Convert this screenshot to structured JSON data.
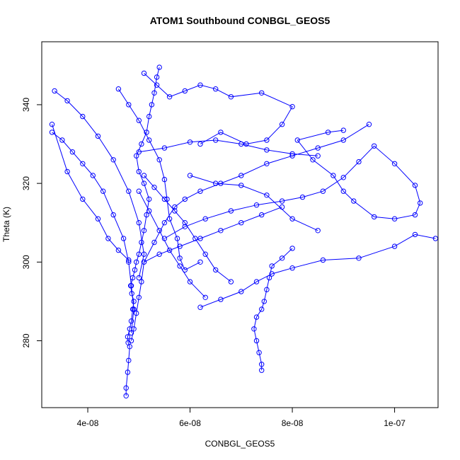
{
  "chart_data": {
    "type": "scatter",
    "title": "ATOM1 Southbound CONBGL_GEOS5",
    "xlabel": "CONBGL_GEOS5",
    "ylabel": "Theta (K)",
    "xlim": [
      3.1e-08,
      1.085e-07
    ],
    "ylim": [
      263,
      356
    ],
    "xticks": [
      4e-08,
      6e-08,
      8e-08,
      1e-07
    ],
    "xtick_labels": [
      "4e-08",
      "6e-08",
      "8e-08",
      "1e-07"
    ],
    "yticks": [
      280,
      300,
      320,
      340
    ],
    "ytick_labels": [
      "280",
      "300",
      "320",
      "340"
    ],
    "grid": false,
    "legend": "none",
    "series_color": "#0000ff",
    "series": [
      {
        "values": [
          [
            4.75e-08,
            266.0
          ],
          [
            4.75e-08,
            268.0
          ],
          [
            4.78e-08,
            272.0
          ],
          [
            4.8e-08,
            275.0
          ],
          [
            4.82e-08,
            278.5
          ],
          [
            4.79e-08,
            279.5
          ],
          [
            4.78e-08,
            281.0
          ],
          [
            4.82e-08,
            283.0
          ],
          [
            4.85e-08,
            285.0
          ],
          [
            4.88e-08,
            288.0
          ],
          [
            4.9e-08,
            290.0
          ],
          [
            4.86e-08,
            292.0
          ],
          [
            4.84e-08,
            294.0
          ],
          [
            4.88e-08,
            296.0
          ],
          [
            4.92e-08,
            298.0
          ],
          [
            4.95e-08,
            300.0
          ],
          [
            5e-08,
            302.0
          ],
          [
            5.05e-08,
            305.0
          ],
          [
            5.1e-08,
            308.0
          ],
          [
            5.15e-08,
            312.0
          ],
          [
            5.2e-08,
            316.0
          ],
          [
            5.1e-08,
            320.0
          ],
          [
            5e-08,
            323.0
          ],
          [
            4.95e-08,
            327.0
          ],
          [
            5.05e-08,
            330.0
          ],
          [
            5.15e-08,
            333.0
          ],
          [
            5.2e-08,
            337.0
          ],
          [
            5.25e-08,
            340.0
          ],
          [
            5.3e-08,
            343.0
          ],
          [
            5.35e-08,
            347.0
          ],
          [
            5.4e-08,
            349.5
          ]
        ]
      },
      {
        "values": [
          [
            4.85e-08,
            280.0
          ],
          [
            4.9e-08,
            283.0
          ],
          [
            4.95e-08,
            287.0
          ],
          [
            5e-08,
            291.0
          ],
          [
            5.05e-08,
            295.0
          ],
          [
            5.1e-08,
            300.0
          ],
          [
            5.3e-08,
            305.0
          ],
          [
            5.5e-08,
            310.0
          ],
          [
            5.7e-08,
            314.0
          ],
          [
            5.9e-08,
            316.0
          ],
          [
            6.2e-08,
            318.0
          ],
          [
            6.6e-08,
            320.0
          ],
          [
            7e-08,
            322.0
          ],
          [
            7.5e-08,
            325.0
          ],
          [
            8e-08,
            327.0
          ],
          [
            8.5e-08,
            329.0
          ],
          [
            9e-08,
            331.0
          ],
          [
            9.5e-08,
            335.0
          ]
        ]
      },
      {
        "values": [
          [
            3.3e-08,
            333.0
          ],
          [
            3.5e-08,
            331.0
          ],
          [
            3.7e-08,
            328.0
          ],
          [
            3.9e-08,
            325.0
          ],
          [
            4.1e-08,
            322.0
          ],
          [
            4.3e-08,
            318.0
          ],
          [
            4.5e-08,
            312.0
          ],
          [
            4.7e-08,
            306.0
          ],
          [
            4.8e-08,
            300.0
          ],
          [
            4.85e-08,
            294.0
          ],
          [
            4.9e-08,
            288.0
          ],
          [
            4.85e-08,
            282.0
          ]
        ]
      },
      {
        "values": [
          [
            3.35e-08,
            343.5
          ],
          [
            3.6e-08,
            341.0
          ],
          [
            3.9e-08,
            337.0
          ],
          [
            4.2e-08,
            332.0
          ],
          [
            4.5e-08,
            326.0
          ],
          [
            4.8e-08,
            318.0
          ],
          [
            5e-08,
            310.0
          ],
          [
            5.1e-08,
            302.0
          ],
          [
            5e-08,
            296.0
          ]
        ]
      },
      {
        "values": [
          [
            3.3e-08,
            335.0
          ],
          [
            3.6e-08,
            323.0
          ],
          [
            3.9e-08,
            316.0
          ],
          [
            4.2e-08,
            311.0
          ],
          [
            4.4e-08,
            306.0
          ],
          [
            4.6e-08,
            303.0
          ],
          [
            4.8e-08,
            300.5
          ]
        ]
      },
      {
        "values": [
          [
            4.6e-08,
            344.0
          ],
          [
            4.8e-08,
            340.0
          ],
          [
            5e-08,
            336.0
          ],
          [
            5.2e-08,
            331.0
          ],
          [
            5.4e-08,
            326.0
          ],
          [
            5.5e-08,
            321.0
          ],
          [
            5.55e-08,
            316.0
          ],
          [
            5.6e-08,
            311.0
          ],
          [
            5.75e-08,
            306.0
          ],
          [
            5.8e-08,
            301.0
          ],
          [
            5.9e-08,
            298.0
          ],
          [
            6.2e-08,
            300.0
          ]
        ]
      },
      {
        "values": [
          [
            5.1e-08,
            348.0
          ],
          [
            5.35e-08,
            345.0
          ],
          [
            5.6e-08,
            342.0
          ],
          [
            5.9e-08,
            343.5
          ],
          [
            6.2e-08,
            345.0
          ],
          [
            6.5e-08,
            344.0
          ],
          [
            6.8e-08,
            342.0
          ],
          [
            7.4e-08,
            343.0
          ],
          [
            8e-08,
            339.5
          ],
          [
            7.8e-08,
            335.0
          ],
          [
            7.5e-08,
            331.0
          ],
          [
            7.1e-08,
            330.0
          ],
          [
            6.6e-08,
            333.0
          ],
          [
            6.2e-08,
            330.0
          ]
        ]
      },
      {
        "values": [
          [
            5.5e-08,
            306.0
          ],
          [
            5.9e-08,
            309.0
          ],
          [
            6.3e-08,
            311.0
          ],
          [
            6.8e-08,
            313.0
          ],
          [
            7.3e-08,
            314.5
          ],
          [
            7.8e-08,
            315.5
          ],
          [
            8.2e-08,
            316.5
          ],
          [
            8.6e-08,
            318.0
          ],
          [
            9e-08,
            321.5
          ],
          [
            9.3e-08,
            325.5
          ],
          [
            9.6e-08,
            329.5
          ],
          [
            1e-07,
            325.0
          ],
          [
            1.04e-07,
            319.5
          ],
          [
            1.05e-07,
            315.0
          ],
          [
            1.04e-07,
            312.0
          ],
          [
            1e-07,
            311.0
          ],
          [
            9.6e-08,
            311.5
          ],
          [
            9.2e-08,
            315.5
          ],
          [
            9e-08,
            318.0
          ],
          [
            8.8e-08,
            322.0
          ],
          [
            8.4e-08,
            326.0
          ],
          [
            8.1e-08,
            331.0
          ],
          [
            8.7e-08,
            333.0
          ],
          [
            9e-08,
            333.5
          ]
        ]
      },
      {
        "values": [
          [
            6.2e-08,
            288.5
          ],
          [
            6.6e-08,
            290.5
          ],
          [
            7e-08,
            292.5
          ],
          [
            7.3e-08,
            295.0
          ],
          [
            7.6e-08,
            297.0
          ],
          [
            8e-08,
            298.5
          ],
          [
            8.6e-08,
            300.5
          ],
          [
            9.3e-08,
            301.0
          ],
          [
            1e-07,
            304.0
          ],
          [
            1.04e-07,
            307.0
          ],
          [
            1.08e-07,
            306.0
          ]
        ]
      },
      {
        "values": [
          [
            7.4e-08,
            272.5
          ],
          [
            7.4e-08,
            274.0
          ],
          [
            7.35e-08,
            277.0
          ],
          [
            7.3e-08,
            280.0
          ],
          [
            7.25e-08,
            283.0
          ],
          [
            7.3e-08,
            286.0
          ],
          [
            7.4e-08,
            288.0
          ],
          [
            7.45e-08,
            290.0
          ],
          [
            7.5e-08,
            293.0
          ],
          [
            7.55e-08,
            296.0
          ],
          [
            7.6e-08,
            299.0
          ],
          [
            7.8e-08,
            301.0
          ],
          [
            8e-08,
            303.5
          ]
        ]
      },
      {
        "values": [
          [
            6.8e-08,
            295.0
          ],
          [
            6.5e-08,
            298.0
          ],
          [
            6.3e-08,
            302.0
          ],
          [
            6.1e-08,
            306.0
          ],
          [
            5.9e-08,
            310.0
          ],
          [
            5.7e-08,
            313.0
          ],
          [
            5.5e-08,
            316.0
          ],
          [
            5.3e-08,
            319.0
          ],
          [
            5.1e-08,
            322.0
          ]
        ]
      },
      {
        "values": [
          [
            6.3e-08,
            291.0
          ],
          [
            6e-08,
            295.0
          ],
          [
            5.8e-08,
            299.0
          ],
          [
            5.6e-08,
            303.0
          ],
          [
            5.4e-08,
            308.0
          ],
          [
            5.2e-08,
            313.0
          ],
          [
            5e-08,
            318.0
          ]
        ]
      },
      {
        "values": [
          [
            5e-08,
            328.0
          ],
          [
            5.5e-08,
            329.0
          ],
          [
            6e-08,
            330.5
          ],
          [
            6.5e-08,
            331.0
          ],
          [
            7e-08,
            330.0
          ],
          [
            7.5e-08,
            328.5
          ],
          [
            8e-08,
            327.5
          ],
          [
            8.5e-08,
            327.0
          ]
        ]
      },
      {
        "values": [
          [
            6e-08,
            322.0
          ],
          [
            6.5e-08,
            320.0
          ],
          [
            7e-08,
            319.5
          ],
          [
            7.5e-08,
            317.0
          ],
          [
            8e-08,
            311.0
          ],
          [
            8.5e-08,
            308.0
          ]
        ]
      },
      {
        "values": [
          [
            5.1e-08,
            300.0
          ],
          [
            5.4e-08,
            302.0
          ],
          [
            5.8e-08,
            304.0
          ],
          [
            6.2e-08,
            306.0
          ],
          [
            6.6e-08,
            308.0
          ],
          [
            7e-08,
            310.0
          ],
          [
            7.4e-08,
            312.0
          ],
          [
            7.8e-08,
            314.0
          ]
        ]
      }
    ]
  }
}
